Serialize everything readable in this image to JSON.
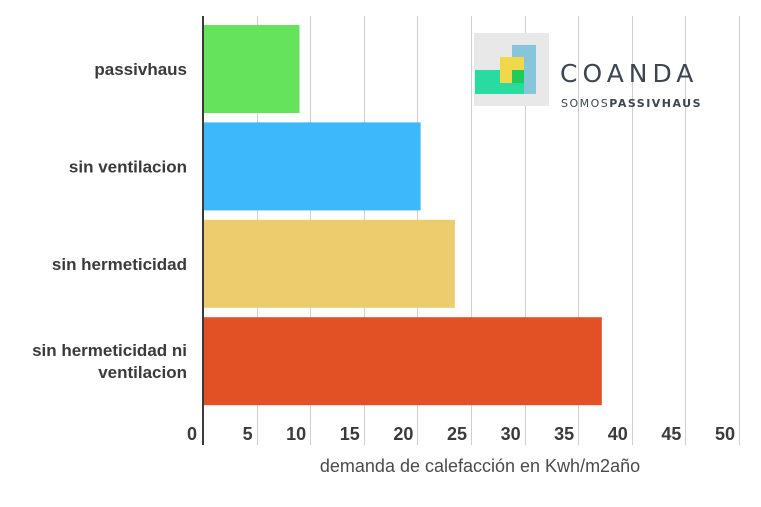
{
  "chart_data": {
    "type": "bar",
    "orientation": "horizontal",
    "title": "",
    "categories": [
      "passivhaus",
      "sin ventilacion",
      "sin hermeticidad",
      "sin hermeticidad ni ventilacion"
    ],
    "category_lines": [
      [
        "passivhaus"
      ],
      [
        "sin ventilacion"
      ],
      [
        "sin hermeticidad"
      ],
      [
        "sin hermeticidad ni",
        "ventilacion"
      ]
    ],
    "values": [
      9,
      20.3,
      23.5,
      37.2
    ],
    "colors": [
      "#66e35d",
      "#3db8fb",
      "#edcc6d",
      "#e25025"
    ],
    "xlim": [
      0,
      50
    ],
    "xticks": [
      0,
      5,
      10,
      15,
      20,
      25,
      30,
      35,
      40,
      45,
      50
    ],
    "xlabel": "demanda de calefacción en Kwh/m2año",
    "ylabel": "",
    "grid": true,
    "legend": "none"
  },
  "brand": {
    "name": "COANDA",
    "tagline_light": "SOMOS",
    "tagline_bold": "PASSIVHAUS",
    "logo_colors": [
      "#29dba0",
      "#efd94a",
      "#86c5da",
      "#21cb5a",
      "#e8e8e8"
    ]
  }
}
